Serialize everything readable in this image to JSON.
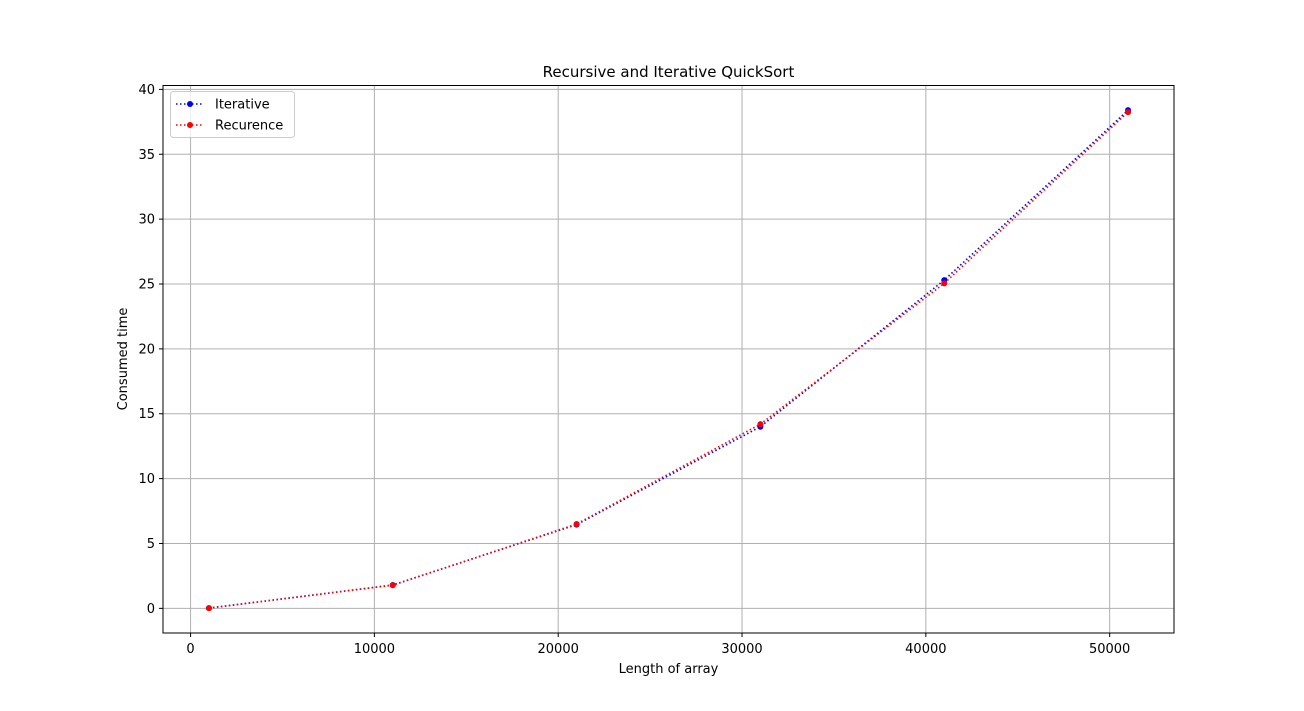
{
  "chart_data": {
    "type": "line",
    "title": "Recursive and Iterative QuickSort",
    "xlabel": "Length of array",
    "ylabel": "Consumed time",
    "xlim": [
      -1500,
      53500
    ],
    "ylim": [
      -1.9,
      40.3
    ],
    "xticks": [
      0,
      10000,
      20000,
      30000,
      40000,
      50000
    ],
    "xtick_labels": [
      "0",
      "10000",
      "20000",
      "30000",
      "40000",
      "50000"
    ],
    "yticks": [
      0,
      5,
      10,
      15,
      20,
      25,
      30,
      35,
      40
    ],
    "ytick_labels": [
      "0",
      "5",
      "10",
      "15",
      "20",
      "25",
      "30",
      "35",
      "40"
    ],
    "grid": true,
    "legend_position": "upper-left",
    "line_style": "dotted",
    "marker": "circle",
    "series": [
      {
        "name": "Iterative",
        "color": "#0000ff",
        "x": [
          1000,
          11000,
          21000,
          31000,
          41000,
          51000
        ],
        "y": [
          0.02,
          1.8,
          6.45,
          14.0,
          25.3,
          38.4
        ]
      },
      {
        "name": "Recurence",
        "color": "#ff0000",
        "x": [
          1000,
          11000,
          21000,
          31000,
          41000,
          51000
        ],
        "y": [
          0.02,
          1.78,
          6.5,
          14.2,
          25.05,
          38.25
        ]
      }
    ]
  }
}
